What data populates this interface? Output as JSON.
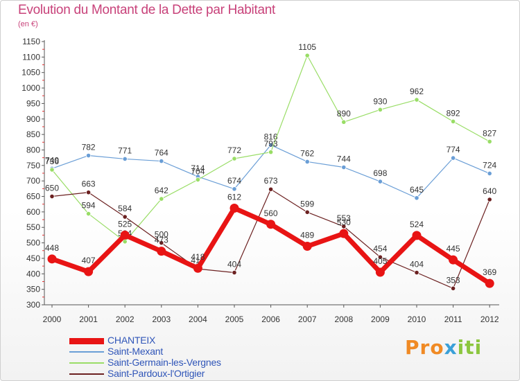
{
  "colors": {
    "title": "#c8427a",
    "legend_text": "#2f55b8",
    "axis": "#555555",
    "grid": "#dddddd",
    "tick_marks": "#e03030"
  },
  "logo": {
    "text_parts": [
      "Pro",
      "x",
      "iti"
    ]
  },
  "chart_data": {
    "type": "line",
    "title": "Evolution du Montant de la Dette par Habitant",
    "subtitle": "(en €)",
    "xlabel": "",
    "ylabel": "",
    "categories": [
      "2000",
      "2001",
      "2002",
      "2003",
      "2004",
      "2005",
      "2006",
      "2007",
      "2008",
      "2009",
      "2010",
      "2011",
      "2012"
    ],
    "ylim": [
      300,
      1150
    ],
    "yticks": [
      300,
      350,
      400,
      450,
      500,
      550,
      600,
      650,
      700,
      750,
      800,
      850,
      900,
      950,
      1000,
      1050,
      1100,
      1150
    ],
    "grid": false,
    "legend_position": "bottom-left",
    "series": [
      {
        "name": "CHANTEIX",
        "color": "#e81414",
        "width": 7,
        "values": [
          448,
          407,
          525,
          473,
          418,
          612,
          560,
          489,
          530,
          405,
          524,
          445,
          369
        ]
      },
      {
        "name": "Saint-Mexant",
        "color": "#6a9ed6",
        "width": 1.2,
        "values": [
          740,
          782,
          771,
          764,
          714,
          674,
          816,
          762,
          744,
          698,
          645,
          774,
          724
        ]
      },
      {
        "name": "Saint-Germain-les-Vergnes",
        "color": "#99dd66",
        "width": 1.2,
        "values": [
          736,
          594,
          504,
          642,
          704,
          772,
          793,
          1105,
          890,
          930,
          962,
          892,
          827
        ]
      },
      {
        "name": "Saint-Pardoux-l'Ortigier",
        "color": "#6b2020",
        "width": 1.2,
        "values": [
          650,
          663,
          584,
          500,
          416,
          404,
          673,
          599,
          553,
          454,
          404,
          353,
          640
        ]
      }
    ]
  }
}
